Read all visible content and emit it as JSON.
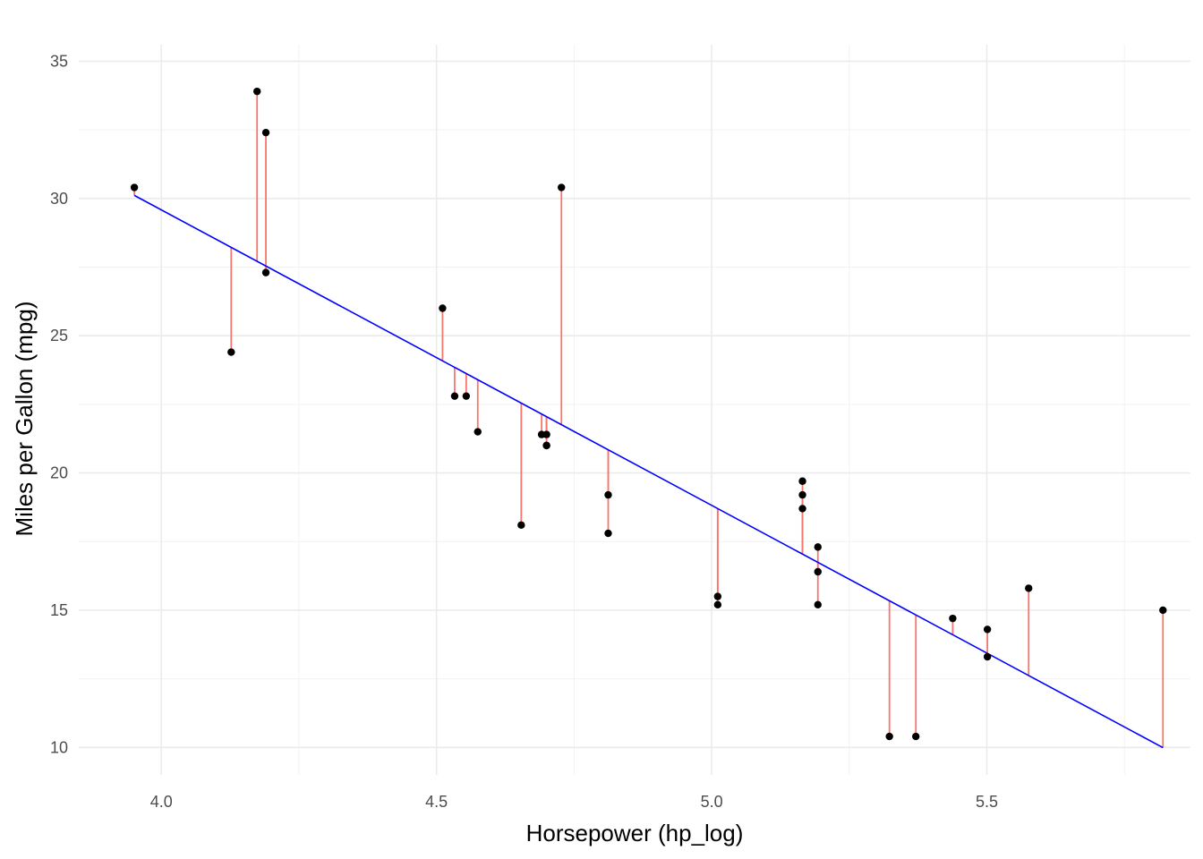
{
  "chart_data": {
    "type": "scatter",
    "title": "",
    "xlabel": "Horsepower (hp_log)",
    "ylabel": "Miles per Gallon (mpg)",
    "xlim": [
      3.85,
      5.87
    ],
    "ylim": [
      9.0,
      35.6
    ],
    "x_ticks": [
      4.0,
      4.5,
      5.0,
      5.5
    ],
    "x_tick_labels": [
      "4.0",
      "4.5",
      "5.0",
      "5.5"
    ],
    "y_ticks": [
      10,
      15,
      20,
      25,
      30,
      35
    ],
    "y_tick_labels": [
      "10",
      "15",
      "20",
      "25",
      "30",
      "35"
    ],
    "grid": true,
    "fit_line": {
      "intercept": 72.64,
      "slope": -10.764,
      "x_range": [
        3.951,
        5.82
      ],
      "color": "#0000ff"
    },
    "residual_color": "#f8766d",
    "point_color": "#000000",
    "points": [
      {
        "x": 3.951,
        "y": 30.4
      },
      {
        "x": 4.127,
        "y": 24.4
      },
      {
        "x": 4.174,
        "y": 33.9
      },
      {
        "x": 4.19,
        "y": 32.4
      },
      {
        "x": 4.19,
        "y": 27.3
      },
      {
        "x": 4.511,
        "y": 26.0
      },
      {
        "x": 4.533,
        "y": 22.8
      },
      {
        "x": 4.554,
        "y": 22.8
      },
      {
        "x": 4.575,
        "y": 21.5
      },
      {
        "x": 4.654,
        "y": 18.1
      },
      {
        "x": 4.691,
        "y": 21.4
      },
      {
        "x": 4.7,
        "y": 21.0
      },
      {
        "x": 4.7,
        "y": 21.0
      },
      {
        "x": 4.7,
        "y": 21.4
      },
      {
        "x": 4.727,
        "y": 30.4
      },
      {
        "x": 4.812,
        "y": 19.2
      },
      {
        "x": 4.812,
        "y": 17.8
      },
      {
        "x": 5.011,
        "y": 15.5
      },
      {
        "x": 5.011,
        "y": 15.2
      },
      {
        "x": 5.165,
        "y": 19.7
      },
      {
        "x": 5.165,
        "y": 19.2
      },
      {
        "x": 5.165,
        "y": 18.7
      },
      {
        "x": 5.193,
        "y": 17.3
      },
      {
        "x": 5.193,
        "y": 16.4
      },
      {
        "x": 5.193,
        "y": 15.2
      },
      {
        "x": 5.323,
        "y": 10.4
      },
      {
        "x": 5.371,
        "y": 10.4
      },
      {
        "x": 5.438,
        "y": 14.7
      },
      {
        "x": 5.501,
        "y": 14.3
      },
      {
        "x": 5.501,
        "y": 13.3
      },
      {
        "x": 5.576,
        "y": 15.8
      },
      {
        "x": 5.82,
        "y": 15.0
      }
    ]
  }
}
